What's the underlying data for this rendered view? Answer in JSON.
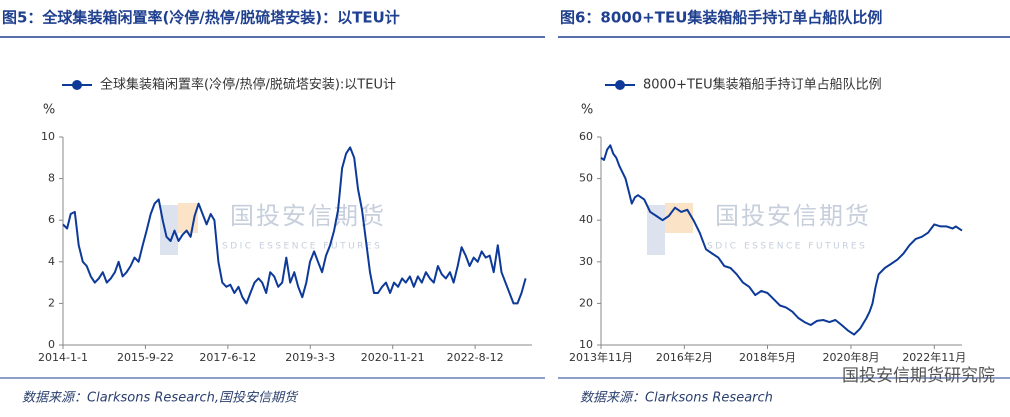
{
  "chart_data": [
    {
      "type": "line",
      "title": "图5：全球集装箱闲置率(冷停/热停/脱硫塔安装)：以TEU计",
      "y_unit": "%",
      "source": "数据来源：Clarksons Research,国投安信期货",
      "watermark": {
        "text": "国投安信期货",
        "subtext": "SDIC ESSENCE FUTURES"
      },
      "x": [
        "2014-01-01",
        "2014-02-01",
        "2014-03-01",
        "2014-04-01",
        "2014-05-01",
        "2014-06-01",
        "2014-07-01",
        "2014-08-01",
        "2014-09-01",
        "2014-10-01",
        "2014-11-01",
        "2014-12-01",
        "2015-01-01",
        "2015-02-01",
        "2015-03-01",
        "2015-04-01",
        "2015-05-01",
        "2015-06-01",
        "2015-07-01",
        "2015-08-01",
        "2015-09-01",
        "2015-10-01",
        "2015-11-01",
        "2015-12-01",
        "2016-01-01",
        "2016-02-01",
        "2016-03-01",
        "2016-04-01",
        "2016-05-01",
        "2016-06-01",
        "2016-07-01",
        "2016-08-01",
        "2016-09-01",
        "2016-10-01",
        "2016-11-01",
        "2016-12-01",
        "2017-01-01",
        "2017-02-01",
        "2017-03-01",
        "2017-04-01",
        "2017-05-01",
        "2017-06-01",
        "2017-07-01",
        "2017-08-01",
        "2017-09-01",
        "2017-10-01",
        "2017-11-01",
        "2017-12-01",
        "2018-01-01",
        "2018-02-01",
        "2018-03-01",
        "2018-04-01",
        "2018-05-01",
        "2018-06-01",
        "2018-07-01",
        "2018-08-01",
        "2018-09-01",
        "2018-10-01",
        "2018-11-01",
        "2018-12-01",
        "2019-01-01",
        "2019-02-01",
        "2019-03-01",
        "2019-04-01",
        "2019-05-01",
        "2019-06-01",
        "2019-07-01",
        "2019-08-01",
        "2019-09-01",
        "2019-10-01",
        "2019-11-01",
        "2019-12-01",
        "2020-01-01",
        "2020-02-01",
        "2020-03-01",
        "2020-04-01",
        "2020-05-01",
        "2020-06-01",
        "2020-07-01",
        "2020-08-01",
        "2020-09-01",
        "2020-10-01",
        "2020-11-01",
        "2020-12-01",
        "2021-01-01",
        "2021-02-01",
        "2021-03-01",
        "2021-04-01",
        "2021-05-01",
        "2021-06-01",
        "2021-07-01",
        "2021-08-01",
        "2021-09-01",
        "2021-10-01",
        "2021-11-01",
        "2021-12-01",
        "2022-01-01",
        "2022-02-01",
        "2022-03-01",
        "2022-04-01",
        "2022-05-01",
        "2022-06-01",
        "2022-07-01",
        "2022-08-01",
        "2022-09-01",
        "2022-10-01",
        "2022-11-01",
        "2022-12-01",
        "2023-01-01",
        "2023-02-01",
        "2023-03-01",
        "2023-04-01",
        "2023-05-01",
        "2023-06-01",
        "2023-07-01",
        "2023-08-01",
        "2023-09-01"
      ],
      "series": [
        {
          "name": "全球集装箱闲置率(冷停/热停/脱硫塔安装):以TEU计",
          "color": "#0d3a99",
          "values": [
            5.8,
            5.6,
            6.3,
            6.4,
            4.8,
            4.0,
            3.8,
            3.3,
            3.0,
            3.2,
            3.5,
            3.0,
            3.2,
            3.5,
            4.0,
            3.3,
            3.5,
            3.8,
            4.2,
            4.0,
            4.8,
            5.5,
            6.3,
            6.8,
            7.0,
            6.0,
            5.2,
            5.0,
            5.5,
            5.0,
            5.3,
            5.5,
            5.2,
            6.2,
            6.8,
            6.3,
            5.8,
            6.3,
            6.0,
            4.0,
            3.0,
            2.8,
            2.9,
            2.5,
            2.8,
            2.3,
            2.0,
            2.5,
            3.0,
            3.2,
            3.0,
            2.5,
            3.5,
            3.3,
            2.8,
            3.0,
            4.2,
            3.0,
            3.5,
            2.8,
            2.3,
            3.0,
            4.0,
            4.5,
            4.0,
            3.5,
            4.3,
            4.8,
            5.5,
            6.5,
            8.5,
            9.2,
            9.5,
            9.0,
            7.5,
            6.5,
            5.0,
            3.5,
            2.5,
            2.5,
            2.8,
            3.0,
            2.5,
            3.0,
            2.8,
            3.2,
            3.0,
            3.3,
            2.8,
            3.3,
            3.0,
            3.5,
            3.2,
            3.0,
            3.8,
            3.4,
            3.2,
            3.5,
            3.0,
            3.8,
            4.7,
            4.3,
            3.8,
            4.2,
            4.0,
            4.5,
            4.2,
            4.3,
            3.5,
            4.8,
            3.5,
            3.0,
            2.5,
            2.0,
            2.0,
            2.5,
            3.2
          ]
        }
      ],
      "xlim": [
        "2014-01-01",
        "2023-10-20"
      ],
      "xticks": [
        {
          "value": "2014-01-01",
          "label": "2014-1-1"
        },
        {
          "value": "2015-09-22",
          "label": "2015-9-22"
        },
        {
          "value": "2017-06-12",
          "label": "2017-6-12"
        },
        {
          "value": "2019-03-03",
          "label": "2019-3-3"
        },
        {
          "value": "2020-11-21",
          "label": "2020-11-21"
        },
        {
          "value": "2022-08-12",
          "label": "2022-8-12"
        }
      ],
      "ylim": [
        0,
        10
      ],
      "yticks": [
        0,
        2,
        4,
        6,
        8,
        10
      ]
    },
    {
      "type": "line",
      "title": "图6：8000+TEU集装箱船手持订单占船队比例",
      "y_unit": "%",
      "source": "数据来源：Clarksons Research",
      "watermark": {
        "text": "国投安信期货",
        "subtext": "SDIC ESSENCE FUTURES"
      },
      "x": [
        "2013-11",
        "2013-12",
        "2014-01",
        "2014-02",
        "2014-03",
        "2014-04",
        "2014-05",
        "2014-07",
        "2014-08",
        "2014-09",
        "2014-10",
        "2014-11",
        "2015-01",
        "2015-03",
        "2015-05",
        "2015-07",
        "2015-09",
        "2015-11",
        "2016-01",
        "2016-03",
        "2016-05",
        "2016-07",
        "2016-09",
        "2016-11",
        "2017-01",
        "2017-03",
        "2017-05",
        "2017-07",
        "2017-09",
        "2017-11",
        "2018-01",
        "2018-03",
        "2018-05",
        "2018-07",
        "2018-09",
        "2018-11",
        "2019-01",
        "2019-03",
        "2019-05",
        "2019-07",
        "2019-09",
        "2019-11",
        "2020-01",
        "2020-03",
        "2020-05",
        "2020-07",
        "2020-09",
        "2020-11",
        "2021-01",
        "2021-02",
        "2021-03",
        "2021-04",
        "2021-05",
        "2021-07",
        "2021-09",
        "2021-11",
        "2022-01",
        "2022-03",
        "2022-05",
        "2022-07",
        "2022-09",
        "2022-11",
        "2023-01",
        "2023-03",
        "2023-05",
        "2023-06",
        "2023-08"
      ],
      "series": [
        {
          "name": "8000+TEU集装箱船手持订单占船队比例",
          "color": "#0d3a99",
          "values": [
            55,
            54.5,
            57,
            58,
            56,
            55,
            53,
            50,
            47,
            44,
            45.5,
            46,
            45,
            42,
            41,
            40,
            41,
            43,
            42,
            42.5,
            40,
            37,
            33,
            32,
            31,
            29,
            28.5,
            27,
            25,
            24,
            22,
            23,
            22.5,
            21,
            19.5,
            19,
            18,
            16.5,
            15.5,
            14.8,
            15.8,
            16,
            15.5,
            16,
            14.8,
            13.5,
            12.5,
            14,
            16.5,
            18,
            20,
            24,
            27,
            28.5,
            29.5,
            30.5,
            32,
            34,
            35.5,
            36,
            37,
            39,
            38.5,
            38.5,
            38,
            38.5,
            37.5
          ]
        }
      ],
      "xlim": [
        "2013-11",
        "2023-08"
      ],
      "xticks": [
        {
          "value": "2013-11",
          "label": "2013年11月"
        },
        {
          "value": "2016-02",
          "label": "2016年2月"
        },
        {
          "value": "2018-05",
          "label": "2018年5月"
        },
        {
          "value": "2020-08",
          "label": "2020年8月"
        },
        {
          "value": "2022-11",
          "label": "2022年11月"
        }
      ],
      "ylim": [
        10,
        60
      ],
      "yticks": [
        10,
        20,
        30,
        40,
        50,
        60
      ]
    }
  ],
  "account_watermark": "国投安信期货研究院"
}
